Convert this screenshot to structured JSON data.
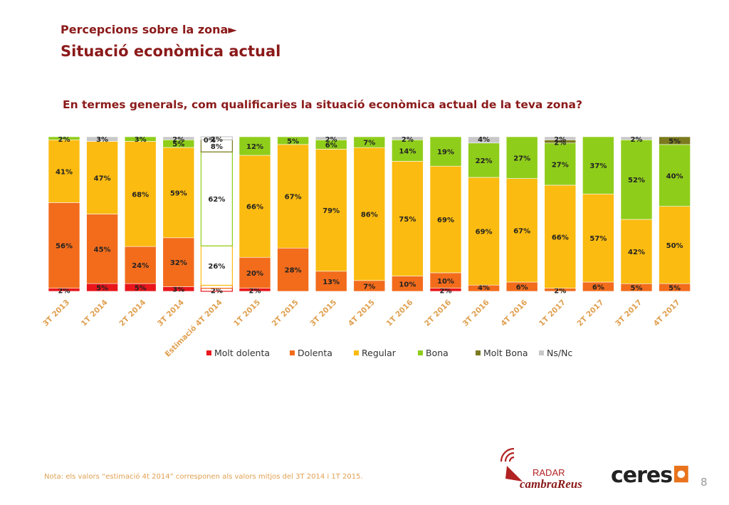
{
  "header": {
    "kicker": "Percepcions sobre la zona►",
    "title": "Situació econòmica actual"
  },
  "question": "En termes generals, com qualificaries la situació econòmica actual de la teva zona?",
  "note": "Nota: els valors “estimació 4t 2014” corresponen als valors mitjos del 3T 2014 i 1T 2015.",
  "page_number": "8",
  "logos": {
    "radar_top": "RADAR",
    "radar_bottom": "cambraReus",
    "ceres": "ceres"
  },
  "chart_data": {
    "type": "bar",
    "stacked": true,
    "percent": true,
    "categories": [
      "3T 2013",
      "1T 2014",
      "2T 2014",
      "3T 2014",
      "Estimació 4T 2014",
      "1T 2015",
      "2T 2015",
      "3T 2015",
      "4T 2015",
      "1T 2016",
      "2T 2016",
      "3T 2016",
      "4T 2016",
      "1T 2017",
      "2T 2017",
      "3T 2017",
      "4T 2017"
    ],
    "highlight_category": "Estimació 4T 2014",
    "legend_position": "bottom",
    "series": [
      {
        "name": "Molt dolenta",
        "color": "#e8151b",
        "values": [
          2,
          5,
          5,
          3,
          2,
          2,
          0,
          0,
          0,
          0,
          2,
          0,
          0,
          0,
          0,
          0,
          0
        ],
        "labels": [
          "2%",
          "5%",
          "5%",
          "3%",
          "2%",
          "2%",
          "",
          "",
          "",
          "",
          "2%",
          "",
          "",
          "",
          "",
          "",
          ""
        ]
      },
      {
        "name": "Dolenta",
        "color": "#f26c1c",
        "values": [
          56,
          45,
          24,
          32,
          2,
          20,
          28,
          13,
          7,
          10,
          10,
          4,
          6,
          2,
          6,
          5,
          5
        ],
        "labels": [
          "56%",
          "45%",
          "24%",
          "32%",
          "",
          "20%",
          "28%",
          "13%",
          "7%",
          "10%",
          "10%",
          "4%",
          "6%",
          "2%",
          "6%",
          "5%",
          "5%"
        ]
      },
      {
        "name": "Regular",
        "color": "#fbbb10",
        "values": [
          41,
          47,
          68,
          59,
          26,
          66,
          67,
          79,
          86,
          75,
          69,
          69,
          67,
          66,
          57,
          42,
          50
        ],
        "labels": [
          "41%",
          "47%",
          "68%",
          "59%",
          "26%",
          "66%",
          "67%",
          "79%",
          "86%",
          "75%",
          "69%",
          "69%",
          "67%",
          "66%",
          "57%",
          "42%",
          "50%"
        ]
      },
      {
        "name": "Bona",
        "color": "#8fcd1b",
        "values": [
          2,
          0,
          3,
          5,
          62,
          12,
          5,
          6,
          7,
          14,
          19,
          22,
          27,
          27,
          37,
          52,
          40
        ],
        "labels": [
          "2%",
          "",
          "3%",
          "5%",
          "62%",
          "12%",
          "5%",
          "6%",
          "7%",
          "14%",
          "19%",
          "22%",
          "27%",
          "27%",
          "37%",
          "52%",
          "40%"
        ]
      },
      {
        "name": "Molt Bona",
        "color": "#7b7a1e",
        "values": [
          0,
          0,
          0,
          0,
          8,
          0,
          0,
          0,
          0,
          0,
          0,
          0,
          0,
          2,
          0,
          0,
          5
        ],
        "labels": [
          "",
          "",
          "",
          "",
          "8%",
          "",
          "",
          "",
          "",
          "",
          "",
          "",
          "",
          "2%",
          "",
          "",
          "5%"
        ]
      },
      {
        "name": "Ns/Nc",
        "color": "#c8c8c8",
        "values": [
          0,
          3,
          0,
          2,
          2,
          0,
          0,
          2,
          0,
          2,
          0,
          4,
          0,
          2,
          0,
          2,
          0
        ],
        "labels": [
          "",
          "3%",
          "",
          "2%",
          "2%",
          "",
          "",
          "2%",
          "",
          "2%",
          "",
          "4%",
          "",
          "2%",
          "",
          "2%",
          ""
        ]
      }
    ],
    "extra_labels": [
      {
        "category": "Estimació 4T 2014",
        "text": "0%"
      }
    ]
  }
}
